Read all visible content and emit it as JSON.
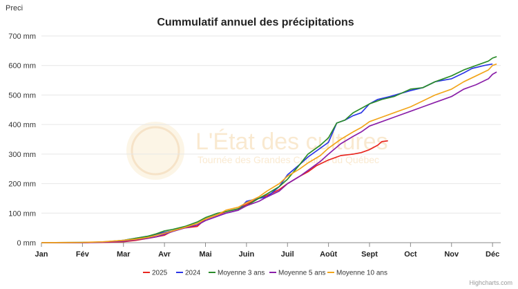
{
  "header": {
    "corner_label": "Preci"
  },
  "watermark": {
    "title": "L'État des cultures",
    "subtitle": "Tournée des Grandes Cultures du Québec"
  },
  "credits": "Highcharts.com",
  "chart_data": {
    "type": "line",
    "title": "Cummulatif annuel des précipitations",
    "ylim": [
      0,
      700
    ],
    "y_ticks": [
      "0 mm",
      "100 mm",
      "200 mm",
      "300 mm",
      "400 mm",
      "500 mm",
      "600 mm",
      "700 mm"
    ],
    "x_ticks": [
      "Jan",
      "Fév",
      "Mar",
      "Avr",
      "Mai",
      "Juin",
      "Juil",
      "Août",
      "Sept",
      "Oct",
      "Nov",
      "Déc"
    ],
    "x_unit": "month (0 = Jan 1, 11 = Dec 1)",
    "grid": "horizontal",
    "legend_position": "bottom",
    "series": [
      {
        "name": "2025",
        "color": "#e8261f",
        "points": [
          [
            0,
            0
          ],
          [
            1,
            0
          ],
          [
            1.5,
            1
          ],
          [
            2,
            3
          ],
          [
            2.3,
            8
          ],
          [
            2.6,
            15
          ],
          [
            2.8,
            20
          ],
          [
            3,
            25
          ],
          [
            3.2,
            40
          ],
          [
            3.5,
            50
          ],
          [
            3.8,
            55
          ],
          [
            4,
            80
          ],
          [
            4.3,
            95
          ],
          [
            4.5,
            105
          ],
          [
            4.8,
            115
          ],
          [
            5,
            130
          ],
          [
            5.3,
            150
          ],
          [
            5.5,
            160
          ],
          [
            5.8,
            180
          ],
          [
            6,
            200
          ],
          [
            6.3,
            225
          ],
          [
            6.5,
            240
          ],
          [
            6.7,
            260
          ],
          [
            7,
            280
          ],
          [
            7.3,
            295
          ],
          [
            7.6,
            300
          ],
          [
            7.8,
            305
          ],
          [
            8,
            315
          ],
          [
            8.2,
            330
          ],
          [
            8.3,
            342
          ],
          [
            8.45,
            345
          ]
        ]
      },
      {
        "name": "2024",
        "color": "#2b35e6",
        "points": [
          [
            0,
            0
          ],
          [
            1,
            0
          ],
          [
            1.5,
            2
          ],
          [
            2,
            8
          ],
          [
            2.3,
            15
          ],
          [
            2.6,
            22
          ],
          [
            2.8,
            28
          ],
          [
            3,
            35
          ],
          [
            3.2,
            40
          ],
          [
            3.5,
            50
          ],
          [
            3.8,
            60
          ],
          [
            4,
            75
          ],
          [
            4.3,
            90
          ],
          [
            4.5,
            100
          ],
          [
            4.8,
            110
          ],
          [
            5,
            140
          ],
          [
            5.3,
            150
          ],
          [
            5.5,
            155
          ],
          [
            5.8,
            190
          ],
          [
            6,
            230
          ],
          [
            6.3,
            265
          ],
          [
            6.5,
            290
          ],
          [
            6.8,
            320
          ],
          [
            7,
            340
          ],
          [
            7.2,
            405
          ],
          [
            7.4,
            415
          ],
          [
            7.6,
            430
          ],
          [
            7.8,
            440
          ],
          [
            8,
            470
          ],
          [
            8.2,
            485
          ],
          [
            8.5,
            495
          ],
          [
            9,
            515
          ],
          [
            9.3,
            525
          ],
          [
            9.6,
            545
          ],
          [
            10,
            555
          ],
          [
            10.3,
            575
          ],
          [
            10.5,
            590
          ],
          [
            10.8,
            600
          ],
          [
            11,
            605
          ]
        ]
      },
      {
        "name": "Moyenne 3 ans",
        "color": "#2a8c2a",
        "points": [
          [
            0,
            0
          ],
          [
            1,
            1
          ],
          [
            1.5,
            2
          ],
          [
            2,
            8
          ],
          [
            2.3,
            15
          ],
          [
            2.6,
            22
          ],
          [
            2.8,
            30
          ],
          [
            3,
            40
          ],
          [
            3.2,
            45
          ],
          [
            3.5,
            55
          ],
          [
            3.8,
            70
          ],
          [
            4,
            85
          ],
          [
            4.3,
            100
          ],
          [
            4.5,
            105
          ],
          [
            4.8,
            115
          ],
          [
            5,
            125
          ],
          [
            5.3,
            150
          ],
          [
            5.5,
            165
          ],
          [
            5.8,
            190
          ],
          [
            6,
            215
          ],
          [
            6.3,
            265
          ],
          [
            6.5,
            300
          ],
          [
            6.8,
            330
          ],
          [
            7,
            355
          ],
          [
            7.2,
            405
          ],
          [
            7.4,
            415
          ],
          [
            7.6,
            440
          ],
          [
            7.8,
            455
          ],
          [
            8,
            470
          ],
          [
            8.3,
            485
          ],
          [
            8.6,
            495
          ],
          [
            9,
            520
          ],
          [
            9.3,
            525
          ],
          [
            9.6,
            545
          ],
          [
            10,
            565
          ],
          [
            10.3,
            585
          ],
          [
            10.6,
            600
          ],
          [
            10.9,
            615
          ],
          [
            11,
            625
          ],
          [
            11.1,
            630
          ]
        ]
      },
      {
        "name": "Moyenne 5 ans",
        "color": "#8a1fa8",
        "points": [
          [
            0,
            0
          ],
          [
            1,
            0
          ],
          [
            1.5,
            2
          ],
          [
            2,
            5
          ],
          [
            2.3,
            10
          ],
          [
            2.6,
            15
          ],
          [
            2.8,
            20
          ],
          [
            3,
            28
          ],
          [
            3.2,
            38
          ],
          [
            3.5,
            50
          ],
          [
            3.8,
            60
          ],
          [
            4,
            75
          ],
          [
            4.3,
            90
          ],
          [
            4.5,
            100
          ],
          [
            4.8,
            110
          ],
          [
            5,
            125
          ],
          [
            5.3,
            140
          ],
          [
            5.5,
            155
          ],
          [
            5.8,
            175
          ],
          [
            6,
            200
          ],
          [
            6.3,
            225
          ],
          [
            6.5,
            245
          ],
          [
            6.8,
            275
          ],
          [
            7,
            300
          ],
          [
            7.3,
            335
          ],
          [
            7.6,
            360
          ],
          [
            7.8,
            375
          ],
          [
            8,
            395
          ],
          [
            8.3,
            410
          ],
          [
            8.6,
            425
          ],
          [
            9,
            445
          ],
          [
            9.3,
            460
          ],
          [
            9.6,
            475
          ],
          [
            10,
            495
          ],
          [
            10.3,
            520
          ],
          [
            10.6,
            535
          ],
          [
            10.9,
            555
          ],
          [
            11,
            570
          ],
          [
            11.1,
            578
          ]
        ]
      },
      {
        "name": "Moyenne 10 ans",
        "color": "#f2a51a",
        "points": [
          [
            0,
            0
          ],
          [
            1,
            1
          ],
          [
            1.5,
            3
          ],
          [
            2,
            8
          ],
          [
            2.3,
            12
          ],
          [
            2.6,
            18
          ],
          [
            2.8,
            25
          ],
          [
            3,
            32
          ],
          [
            3.2,
            40
          ],
          [
            3.5,
            52
          ],
          [
            3.8,
            65
          ],
          [
            4,
            80
          ],
          [
            4.3,
            95
          ],
          [
            4.5,
            110
          ],
          [
            4.8,
            120
          ],
          [
            5,
            135
          ],
          [
            5.3,
            155
          ],
          [
            5.5,
            175
          ],
          [
            5.8,
            200
          ],
          [
            6,
            225
          ],
          [
            6.3,
            250
          ],
          [
            6.5,
            270
          ],
          [
            6.8,
            295
          ],
          [
            7,
            320
          ],
          [
            7.3,
            350
          ],
          [
            7.6,
            375
          ],
          [
            7.8,
            390
          ],
          [
            8,
            410
          ],
          [
            8.3,
            425
          ],
          [
            8.6,
            440
          ],
          [
            9,
            460
          ],
          [
            9.3,
            480
          ],
          [
            9.6,
            500
          ],
          [
            10,
            520
          ],
          [
            10.3,
            545
          ],
          [
            10.6,
            565
          ],
          [
            10.9,
            585
          ],
          [
            11,
            600
          ],
          [
            11.1,
            605
          ]
        ]
      }
    ]
  }
}
